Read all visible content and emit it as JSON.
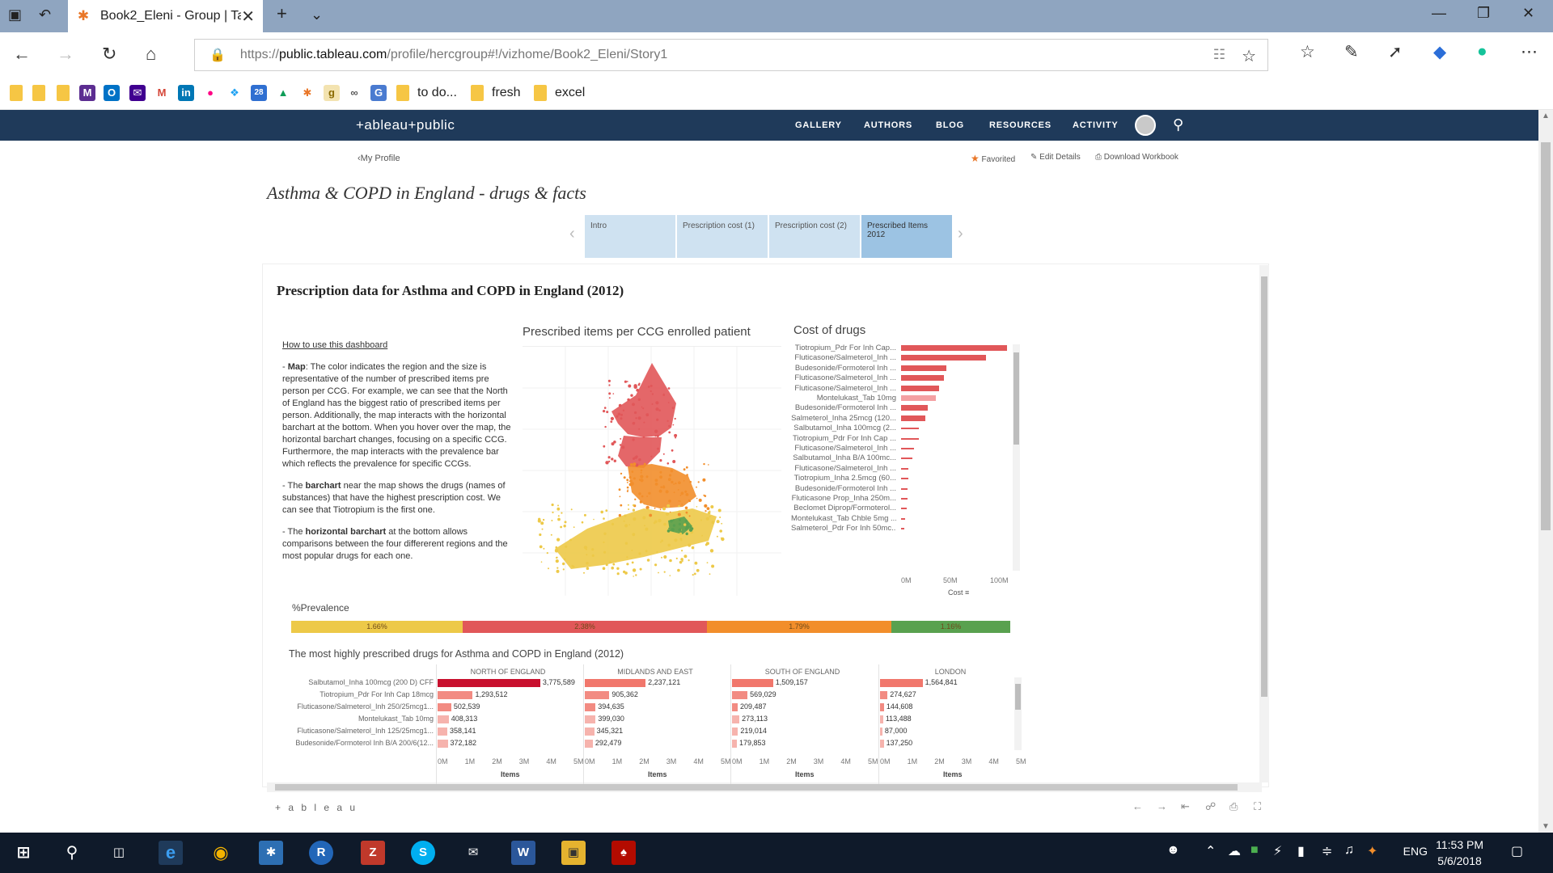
{
  "browser": {
    "tab_title": "Book2_Eleni - Group | Ta",
    "url_prefix": "https://",
    "url_host": "public.tableau.com",
    "url_path": "/profile/hercgroup#!/vizhome/Book2_Eleni/Story1",
    "favorites": [
      "to do...",
      "fresh",
      "excel"
    ]
  },
  "header": {
    "logo": "+ableau+public",
    "nav": [
      "GALLERY",
      "AUTHORS",
      "BLOG",
      "RESOURCES",
      "ACTIVITY"
    ]
  },
  "profile": {
    "back_label": "My Profile",
    "actions": [
      "Favorited",
      "Edit Details",
      "Download Workbook"
    ]
  },
  "story": {
    "title": "Asthma & COPD in England - drugs & facts",
    "tabs": [
      "Intro",
      "Prescription cost (1)",
      "Prescription cost (2)",
      "Prescribed Items 2012"
    ],
    "active_tab": 3
  },
  "dashboard": {
    "title": "Prescription data for Asthma and COPD in England (2012)",
    "howto_header": "How to use this dashboard",
    "howto": [
      {
        "bold": "Map",
        "pre": "- ",
        "text": ": The color indicates the region and the size is representative of the number of prescribed items pre person per CCG. For example, we can see that the North of England has the biggest ratio of prescribed items per person. Additionally, the map interacts with the horizontal barchart at the bottom. When you hover over the map, the horizontal barchart changes, focusing on a specific CCG. Furthermore, the map interacts with the prevalence bar which reflects the prevalence for specific CCGs."
      },
      {
        "bold": "barchart",
        "pre": "- The ",
        "text": " near the map shows the drugs (names of substances) that have the highest prescription cost. We can see that Tiotropium is the first one."
      },
      {
        "bold": "horizontal barchart",
        "pre": "- The ",
        "text": " at the bottom allows comparisons between the four differerent regions and the most popular drugs for each one."
      }
    ],
    "map_title": "Prescribed items per CCG enrolled patient",
    "cost_title": "Cost of drugs",
    "prevalence_title": "%Prevalence",
    "bottom_title": "The most highly prescribed drugs for Asthma and COPD in England (2012)"
  },
  "chart_data": [
    {
      "type": "bar",
      "title": "Cost of drugs",
      "xlabel": "Cost",
      "xticks": [
        "0M",
        "50M",
        "100M"
      ],
      "xlim": [
        0,
        100000000
      ],
      "categories": [
        "Tiotropium_Pdr For Inh Cap...",
        "Fluticasone/Salmeterol_Inh ...",
        "Budesonide/Formoterol Inh ...",
        "Fluticasone/Salmeterol_Inh ...",
        "Fluticasone/Salmeterol_Inh ...",
        "Montelukast_Tab 10mg",
        "Budesonide/Formoterol Inh ...",
        "Salmeterol_Inha 25mcg (120...",
        "Salbutamol_Inha 100mcg (2...",
        "Tiotropium_Pdr For Inh Cap ...",
        "Fluticasone/Salmeterol_Inh ...",
        "Salbutamol_Inha B/A 100mc...",
        "Fluticasone/Salmeterol_Inh ...",
        "Tiotropium_Inha 2.5mcg (60...",
        "Budesonide/Formoterol Inh ...",
        "Fluticasone Prop_Inha 250m...",
        "Beclomet Diprop/Formoterol...",
        "Montelukast_Tab Chble 5mg ...",
        "Salmeterol_Pdr For Inh 50mc..."
      ],
      "values": [
        101000000,
        81000000,
        43000000,
        41000000,
        36000000,
        33000000,
        25000000,
        23000000,
        17000000,
        17000000,
        12000000,
        11000000,
        7000000,
        7000000,
        6000000,
        6000000,
        5000000,
        4000000,
        3000000
      ],
      "highlight_index": 5,
      "colors": {
        "bar": "#e15759",
        "highlight": "#f4a0a2"
      }
    },
    {
      "type": "bar",
      "title": "%Prevalence",
      "categories": [
        "NORTH OF ENGLAND",
        "MIDLANDS AND EAST",
        "SOUTH OF ENGLAND",
        "LONDON"
      ],
      "values": [
        1.66,
        2.38,
        1.79,
        1.16
      ],
      "labels": [
        "1.66%",
        "2.38%",
        "1.79%",
        "1.16%"
      ],
      "colors": [
        "#edc948",
        "#e15759",
        "#f28e2b",
        "#59a14f"
      ]
    },
    {
      "type": "bar",
      "title": "The most highly prescribed drugs for Asthma and COPD in England (2012)",
      "xlabel": "Items",
      "xticks": [
        "0M",
        "1M",
        "2M",
        "3M",
        "4M",
        "5M"
      ],
      "xlim": [
        0,
        5000000
      ],
      "categories": [
        "Salbutamol_Inha 100mcg (200 D) CFF",
        "Tiotropium_Pdr For Inh Cap 18mcg",
        "Fluticasone/Salmeterol_Inh 250/25mcg1...",
        "Montelukast_Tab 10mg",
        "Fluticasone/Salmeterol_Inh 125/25mcg1...",
        "Budesonide/Formoterol Inh B/A 200/6(12..."
      ],
      "series": [
        {
          "name": "NORTH OF ENGLAND",
          "values": [
            3775589,
            1293512,
            502539,
            408313,
            358141,
            372182
          ],
          "labels": [
            "3,775,589",
            "1,293,512",
            "502,539",
            "408,313",
            "358,141",
            "372,182"
          ]
        },
        {
          "name": "MIDLANDS AND EAST",
          "values": [
            2237121,
            905362,
            394635,
            399030,
            345321,
            292479
          ],
          "labels": [
            "2,237,121",
            "905,362",
            "394,635",
            "399,030",
            "345,321",
            "292,479"
          ]
        },
        {
          "name": "SOUTH OF ENGLAND",
          "values": [
            1509157,
            569029,
            209487,
            273113,
            219014,
            179853
          ],
          "labels": [
            "1,509,157",
            "569,029",
            "209,487",
            "273,113",
            "219,014",
            "179,853"
          ]
        },
        {
          "name": "LONDON",
          "values": [
            1564841,
            274627,
            144608,
            113488,
            87000,
            137250
          ],
          "labels": [
            "1,564,841",
            "274,627",
            "144,608",
            "113,488",
            "87,000",
            "137,250"
          ]
        }
      ],
      "colors": {
        "top": "#c8102e",
        "mid": "#f28b82",
        "low": "#f6b3ad"
      }
    }
  ],
  "map": {
    "legend_colors": {
      "north": "#e15759",
      "midlands": "#f28e2b",
      "south": "#edc948",
      "london": "#59a14f"
    }
  },
  "footer": {
    "brand": "+ a b l e a u"
  },
  "taskbar": {
    "time": "11:53 PM",
    "date": "5/6/2018",
    "lang": "ENG"
  }
}
